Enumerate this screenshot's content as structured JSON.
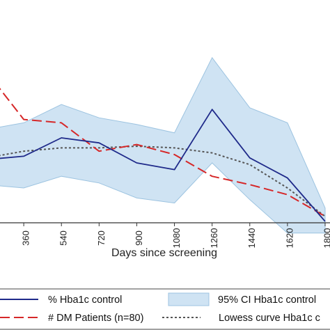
{
  "chart_data": {
    "type": "line",
    "title": "",
    "xlabel": "Days since screening",
    "ylabel": "",
    "x_ticks": [
      360,
      540,
      720,
      900,
      1080,
      1260,
      1440,
      1620,
      1800
    ],
    "xlim": [
      180,
      1800
    ],
    "ylim": [
      0,
      100
    ],
    "grid": false,
    "legend_position": "bottom",
    "series": [
      {
        "name": "% Hba1c control",
        "style": "solid",
        "color": "#1f2a8a",
        "x": [
          180,
          360,
          540,
          720,
          900,
          1080,
          1260,
          1440,
          1620,
          1800
        ],
        "y": [
          47,
          49,
          60,
          57,
          45,
          41,
          77,
          48,
          36,
          10
        ]
      },
      {
        "name": "95% CI Hba1c control",
        "style": "band",
        "color": "#cfe3f3",
        "edge_color": "#9cc3e0",
        "x": [
          180,
          360,
          540,
          720,
          900,
          1080,
          1260,
          1440,
          1620,
          1800
        ],
        "upper": [
          65,
          69,
          80,
          72,
          68,
          63,
          108,
          78,
          69,
          18
        ],
        "lower": [
          32,
          30,
          37,
          33,
          24,
          21,
          45,
          23,
          3,
          3
        ]
      },
      {
        "name": "# DM Patients (n=80)",
        "style": "dashed",
        "color": "#d62728",
        "x": [
          180,
          360,
          540,
          720,
          900,
          1080,
          1260,
          1440,
          1620,
          1800
        ],
        "y": [
          100,
          71,
          69,
          52,
          56,
          50,
          37,
          32,
          26,
          13
        ]
      },
      {
        "name": "Lowess curve Hba1c c",
        "style": "dotted",
        "color": "#555555",
        "x": [
          180,
          360,
          540,
          720,
          900,
          1080,
          1260,
          1440,
          1620,
          1800
        ],
        "y": [
          48,
          52,
          54,
          54,
          55,
          54,
          51,
          44,
          30,
          13
        ]
      }
    ]
  }
}
